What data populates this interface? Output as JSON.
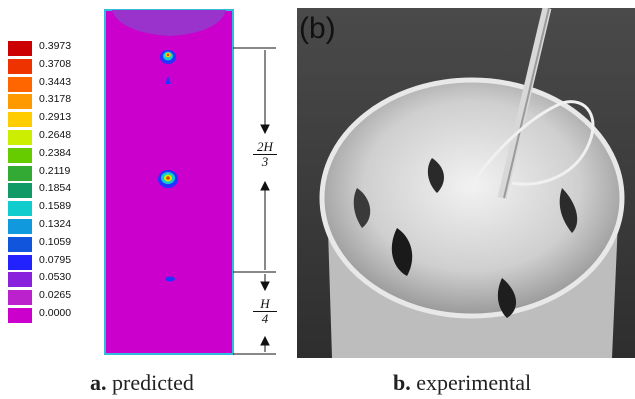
{
  "legend": {
    "entries": [
      {
        "value": "0.3973",
        "color": "#cc0000"
      },
      {
        "value": "0.3708",
        "color": "#ee3300"
      },
      {
        "value": "0.3443",
        "color": "#ff6600"
      },
      {
        "value": "0.3178",
        "color": "#ff9900"
      },
      {
        "value": "0.2913",
        "color": "#ffcc00"
      },
      {
        "value": "0.2648",
        "color": "#ccee00"
      },
      {
        "value": "0.2384",
        "color": "#66cc00"
      },
      {
        "value": "0.2119",
        "color": "#33aa33"
      },
      {
        "value": "0.1854",
        "color": "#119966"
      },
      {
        "value": "0.1589",
        "color": "#11cccc"
      },
      {
        "value": "0.1324",
        "color": "#1199dd"
      },
      {
        "value": "0.1059",
        "color": "#1155dd"
      },
      {
        "value": "0.0795",
        "color": "#2222ff"
      },
      {
        "value": "0.0530",
        "color": "#8822dd"
      },
      {
        "value": "0.0265",
        "color": "#bb22cc"
      },
      {
        "value": "0.0000",
        "color": "#cc00cc"
      }
    ]
  },
  "dimensions": {
    "upper": {
      "numerator": "2H",
      "denominator": "3"
    },
    "lower": {
      "numerator": "H",
      "denominator": "4"
    }
  },
  "panel_b_label": "(b)",
  "captions": {
    "a": {
      "letter": "a.",
      "text": "predicted"
    },
    "b": {
      "letter": "b.",
      "text": "experimental"
    }
  },
  "colors": {
    "domain": "#cc00cc",
    "domain_border": "#33bbdd",
    "photo_background": "#3a3a3a"
  }
}
